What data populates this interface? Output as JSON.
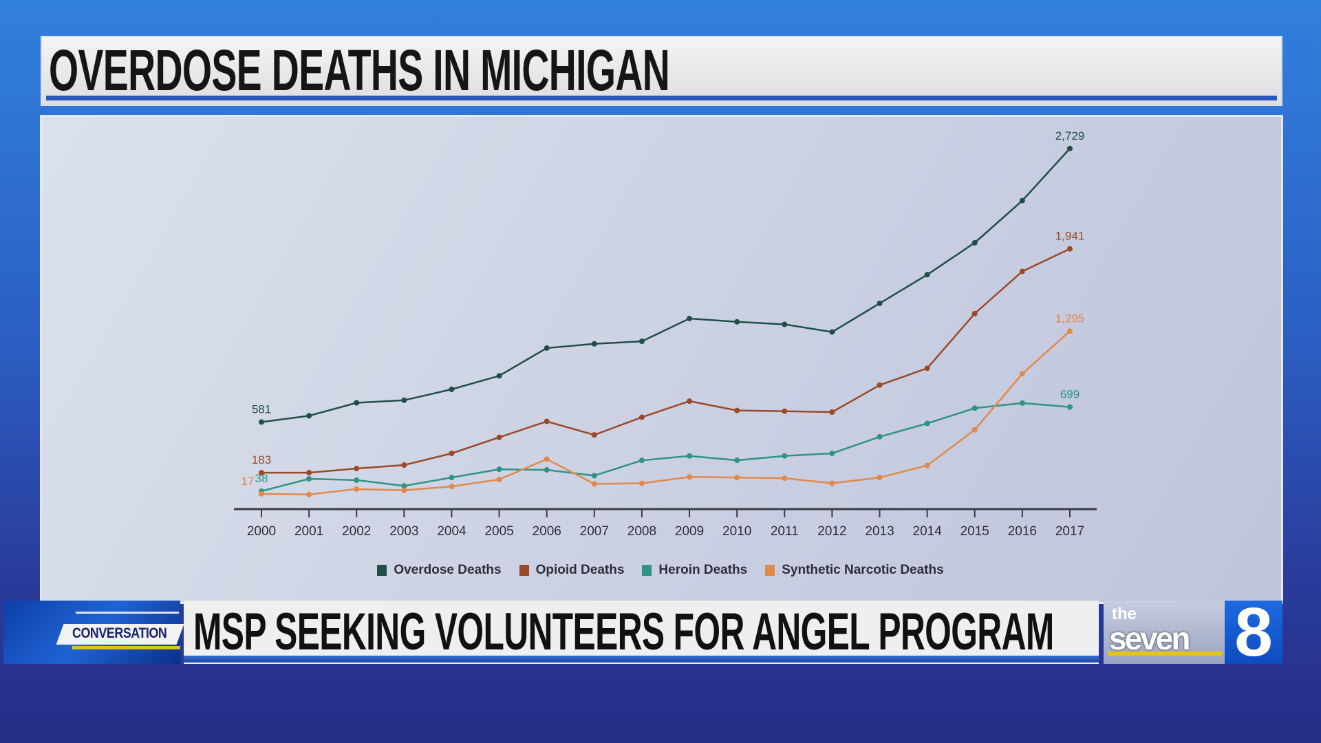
{
  "header": {
    "title": "OVERDOSE DEATHS IN MICHIGAN"
  },
  "lower_third": {
    "segment_label": "CONVERSATION",
    "headline": "MSP SEEKING VOLUNTEERS FOR ANGEL PROGRAM",
    "station_logo_text": "the seven 8"
  },
  "chart_data": {
    "type": "line",
    "title": "",
    "xlabel": "",
    "ylabel": "",
    "grid": false,
    "legend_placement": "bottom",
    "x": [
      2000,
      2001,
      2002,
      2003,
      2004,
      2005,
      2006,
      2007,
      2008,
      2009,
      2010,
      2011,
      2012,
      2013,
      2014,
      2015,
      2016,
      2017
    ],
    "series": [
      {
        "name": "Overdose Deaths",
        "color": "#1f4f46",
        "values": [
          581,
          630,
          732,
          752,
          838,
          944,
          1162,
          1195,
          1215,
          1394,
          1368,
          1348,
          1288,
          1513,
          1738,
          1989,
          2320,
          2729
        ],
        "labels": {
          "2000": "581",
          "2017": "2,729"
        }
      },
      {
        "name": "Opioid Deaths",
        "color": "#9a4a28",
        "values": [
          183,
          183,
          216,
          243,
          335,
          461,
          586,
          480,
          619,
          745,
          672,
          666,
          659,
          871,
          1003,
          1433,
          1764,
          1941
        ],
        "labels": {
          "2000": "183",
          "2017": "1,941"
        }
      },
      {
        "name": "Heroin Deaths",
        "color": "#2f9482",
        "values": [
          38,
          135,
          125,
          80,
          145,
          210,
          205,
          160,
          280,
          315,
          280,
          315,
          335,
          465,
          570,
          690,
          730,
          699
        ],
        "labels": {
          "2000": "38",
          "2017": "699"
        }
      },
      {
        "name": "Synthetic Narcotic Deaths",
        "color": "#e0894a",
        "values": [
          17,
          12,
          55,
          45,
          75,
          130,
          290,
          95,
          100,
          150,
          145,
          140,
          100,
          145,
          240,
          520,
          960,
          1295
        ],
        "labels": {
          "2000": "17",
          "2017": "1,295"
        }
      }
    ]
  }
}
